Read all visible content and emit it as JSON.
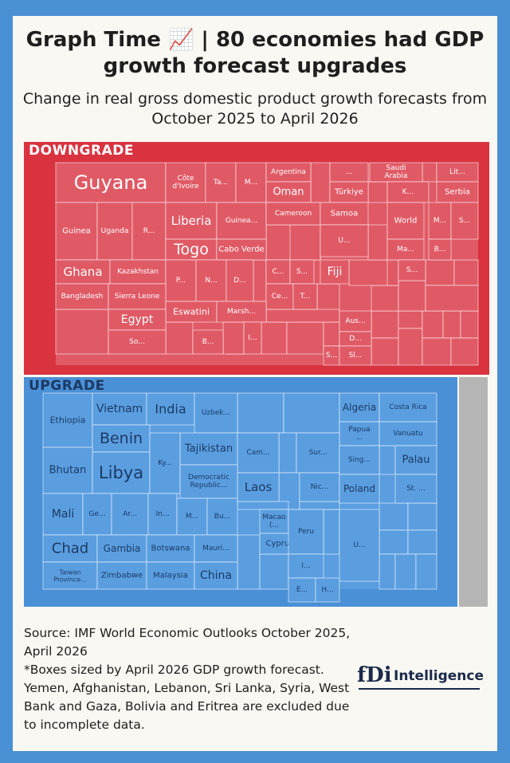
{
  "title": "Graph Time 📈 | 80 economies had GDP growth forecast upgrades",
  "subtitle": "Change in real gross domestic product growth forecasts from October 2025 to April 2026",
  "colors": {
    "downgrade": "#d8333f",
    "downgrade_tile": "#e05a66",
    "upgrade": "#4a90d6",
    "upgrade_tile": "#5a9ee0",
    "excluded": "#b5b5b5"
  },
  "chart_data": {
    "type": "treemap",
    "groups": [
      {
        "name": "DOWNGRADE",
        "labels": [
          "Guyana",
          "Côte d'Ivoire",
          "Ta...",
          "M...",
          "Argentina",
          "...",
          "Saudi Arabia",
          "Lit...",
          "Oman",
          "Türkiye",
          "K...",
          "Serbia",
          "Guinea",
          "Uganda",
          "R...",
          "Liberia",
          "Guinea...",
          "Cameroon",
          "Samoa",
          "World",
          "M...",
          "S...",
          "Togo",
          "Cabo Verde",
          "U...",
          "Ma...",
          "B...",
          "Ghana",
          "Kazakhstan",
          "P...",
          "N...",
          "D...",
          "C...",
          "S...",
          "Fiji",
          "S...",
          "Bangladesh",
          "Sierra Leone",
          "Ce...",
          "T...",
          "Eswatini",
          "Marsh...",
          "Egypt",
          "Aus...",
          "D...",
          "So...",
          "B...",
          "I...",
          "S...",
          "Sl..."
        ]
      },
      {
        "name": "UPGRADE",
        "labels": [
          "Ethiopia",
          "Vietnam",
          "India",
          "Uzbek...",
          "Algeria",
          "Costa Rica",
          "Papua ...",
          "Vanuatu",
          "Benin",
          "Tajikistan",
          "Cam...",
          "Sur...",
          "Sing...",
          "Palau",
          "Bhutan",
          "Libya",
          "Ky...",
          "Democratic Republic...",
          "Laos",
          "Nic...",
          "Poland",
          "St. ...",
          "Mali",
          "Ge...",
          "Ar...",
          "In...",
          "M...",
          "Bu...",
          "Macao (...",
          "Cyprus",
          "Peru",
          "U...",
          "Chad",
          "Gambia",
          "Botswana",
          "Mauri...",
          "I...",
          "Taiwan Province...",
          "Zimbabwe",
          "Malaysia",
          "China",
          "E...",
          "H..."
        ]
      }
    ]
  },
  "source": "Source: IMF World Economic Outlooks October 2025, April 2026",
  "footnote": "*Boxes sized by April 2026 GDP growth forecast. Yemen, Afghanistan, Lebanon, Sri Lanka, Syria, West Bank and Gaza, Bolivia and Eritrea are excluded due to incomplete data.",
  "logo": {
    "mark": "fDi",
    "text": "Intelligence"
  }
}
